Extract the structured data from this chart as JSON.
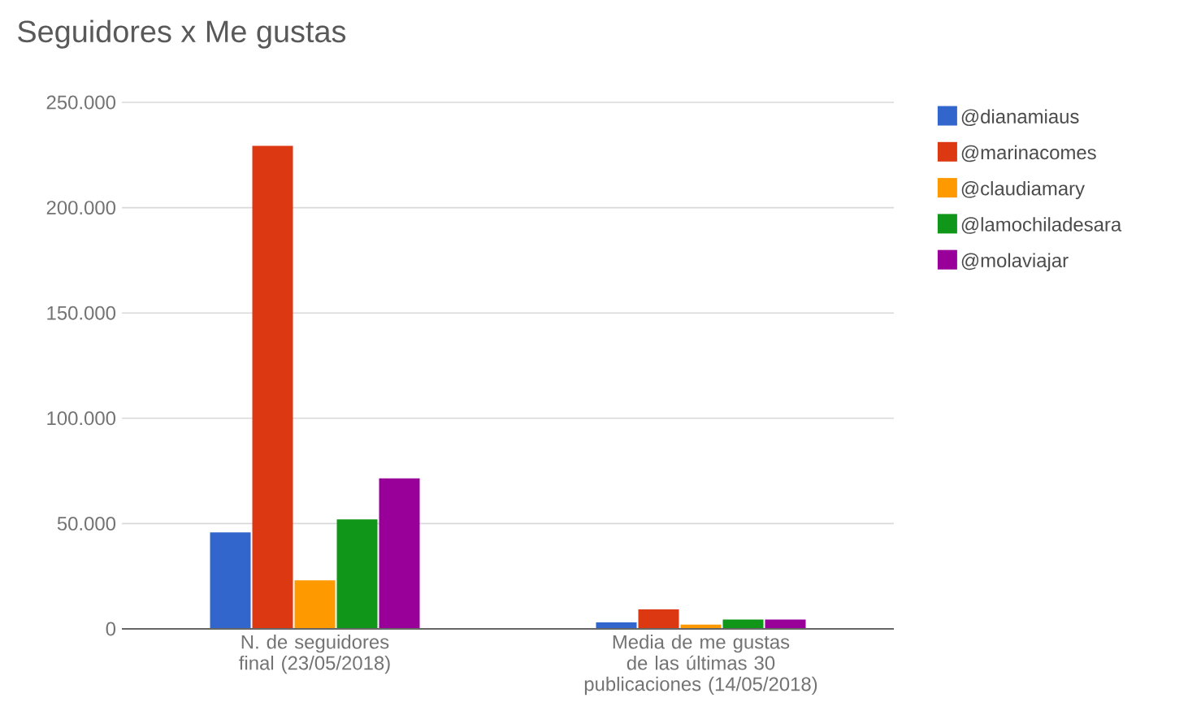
{
  "chart_data": {
    "type": "bar",
    "title": "Seguidores x Me gustas",
    "categories": [
      "N. de seguidores final (23/05/2018)",
      "Media de me gustas de las últimas 30 publicaciones (14/05/2018)"
    ],
    "series": [
      {
        "name": "@dianamiaus",
        "color": "#3366cc",
        "values": [
          45800,
          3100
        ]
      },
      {
        "name": "@marinacomes",
        "color": "#dc3912",
        "values": [
          229400,
          9300
        ]
      },
      {
        "name": "@claudiamary",
        "color": "#ff9900",
        "values": [
          23100,
          2000
        ]
      },
      {
        "name": "@lamochiladesara",
        "color": "#109618",
        "values": [
          52000,
          4400
        ]
      },
      {
        "name": "@molaviajar",
        "color": "#990099",
        "values": [
          71500,
          4400
        ]
      }
    ],
    "ylim": [
      0,
      250000
    ],
    "yticks": [
      {
        "value": 0,
        "label": "0"
      },
      {
        "value": 50000,
        "label": "50.000"
      },
      {
        "value": 100000,
        "label": "100.000"
      },
      {
        "value": 150000,
        "label": "150.000"
      },
      {
        "value": 200000,
        "label": "200.000"
      },
      {
        "value": 250000,
        "label": "250.000"
      }
    ],
    "grid": "y",
    "legend": "top right"
  }
}
